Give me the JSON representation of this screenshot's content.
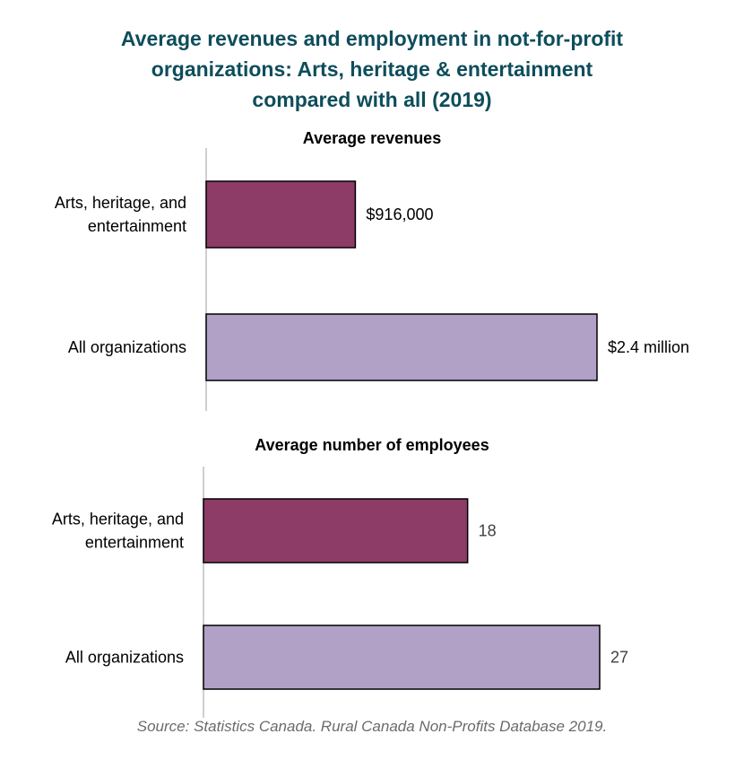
{
  "title_lines": [
    "Average revenues and employment in not-for-profit",
    "organizations: Arts, heritage & entertainment",
    "compared with all (2019)"
  ],
  "source": "Source: Statistics Canada. Rural Canada Non-Profits Database 2019.",
  "colors": {
    "arts": "#8c3c66",
    "all": "#b1a1c7",
    "title": "#0e4d5c",
    "axis": "#bfbfbf"
  },
  "chart_data": [
    {
      "type": "bar",
      "orientation": "horizontal",
      "title": "Average revenues",
      "categories": [
        [
          "Arts, heritage, and",
          "entertainment"
        ],
        [
          "All organizations"
        ]
      ],
      "values": [
        916000,
        2400000
      ],
      "value_labels": [
        "$916,000",
        "$2.4 million"
      ],
      "xlim": [
        0,
        2400000
      ]
    },
    {
      "type": "bar",
      "orientation": "horizontal",
      "title": "Average number of employees",
      "categories": [
        [
          "Arts, heritage, and",
          "entertainment"
        ],
        [
          "All organizations"
        ]
      ],
      "values": [
        18,
        27
      ],
      "value_labels": [
        "18",
        "27"
      ],
      "xlim": [
        0,
        27
      ]
    }
  ]
}
